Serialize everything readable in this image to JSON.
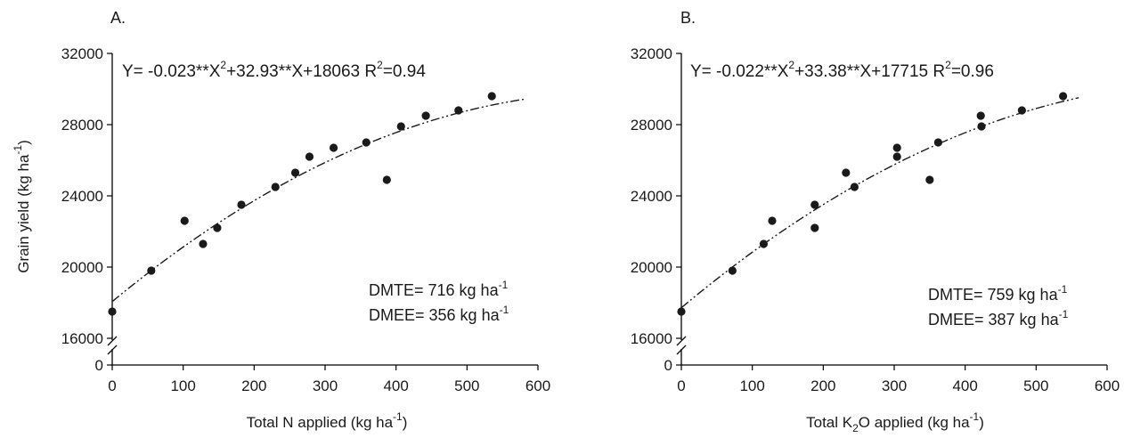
{
  "y_axis_title": "Grain yield (kg ha",
  "y_axis_title_sup": "-1",
  "y_axis_title_end": ")",
  "chart_data": [
    {
      "type": "scatter",
      "panel_label": "A.",
      "xlabel": "Total N applied (kg ha",
      "xlabel_sup": "-1",
      "xlabel_end": ")",
      "ylabel": "Grain yield (kg ha-1)",
      "xlim": [
        0,
        600
      ],
      "x_ticks": [
        "0",
        "100",
        "200",
        "300",
        "400",
        "500",
        "600"
      ],
      "y_ticks": [
        "16000",
        "20000",
        "24000",
        "28000",
        "32000"
      ],
      "y_break_tick": "0",
      "ylim": [
        16000,
        32000
      ],
      "axis_break": true,
      "grid": false,
      "equation": {
        "a": "Y= -0.023**X",
        "a_sup": "2",
        "b": "+32.93**X+18063  R",
        "b_sup": "2",
        "c": "=0.94"
      },
      "annotations": [
        {
          "text": "DMTE= 716 kg ha",
          "sup": "-1"
        },
        {
          "text": "DMEE= 356 kg ha",
          "sup": "-1"
        }
      ],
      "points": [
        {
          "x": 0,
          "y": 17500
        },
        {
          "x": 55,
          "y": 19800
        },
        {
          "x": 102,
          "y": 22600
        },
        {
          "x": 128,
          "y": 21300
        },
        {
          "x": 148,
          "y": 22200
        },
        {
          "x": 182,
          "y": 23500
        },
        {
          "x": 230,
          "y": 24500
        },
        {
          "x": 258,
          "y": 25300
        },
        {
          "x": 278,
          "y": 26200
        },
        {
          "x": 312,
          "y": 26700
        },
        {
          "x": 358,
          "y": 27000
        },
        {
          "x": 387,
          "y": 24900
        },
        {
          "x": 407,
          "y": 27900
        },
        {
          "x": 442,
          "y": 28500
        },
        {
          "x": 488,
          "y": 28800
        },
        {
          "x": 535,
          "y": 29600
        }
      ],
      "fit": {
        "a": -0.023,
        "b": 32.93,
        "c": 18063,
        "x_range": [
          0,
          580
        ]
      }
    },
    {
      "type": "scatter",
      "panel_label": "B.",
      "xlabel": "Total K",
      "xlabel_sub": "2",
      "xlabel_mid": "O applied (kg ha",
      "xlabel_sup": "-1",
      "xlabel_end": ")",
      "ylabel": "Grain yield (kg ha-1)",
      "xlim": [
        0,
        600
      ],
      "x_ticks": [
        "0",
        "100",
        "200",
        "300",
        "400",
        "500",
        "600"
      ],
      "y_ticks": [
        "16000",
        "20000",
        "24000",
        "28000",
        "32000"
      ],
      "y_break_tick": "0",
      "ylim": [
        16000,
        32000
      ],
      "axis_break": true,
      "grid": false,
      "equation": {
        "a": "Y= -0.022**X",
        "a_sup": "2",
        "b": "+33.38**X+17715  R",
        "b_sup": "2",
        "c": "=0.96"
      },
      "annotations": [
        {
          "text": "DMTE= 759 kg ha",
          "sup": "-1"
        },
        {
          "text": "DMEE= 387 kg ha",
          "sup": "-1"
        }
      ],
      "points": [
        {
          "x": 0,
          "y": 17500
        },
        {
          "x": 72,
          "y": 19800
        },
        {
          "x": 116,
          "y": 21300
        },
        {
          "x": 128,
          "y": 22600
        },
        {
          "x": 188,
          "y": 23500
        },
        {
          "x": 188,
          "y": 22200
        },
        {
          "x": 232,
          "y": 25300
        },
        {
          "x": 244,
          "y": 24500
        },
        {
          "x": 304,
          "y": 26700
        },
        {
          "x": 304,
          "y": 26200
        },
        {
          "x": 350,
          "y": 24900
        },
        {
          "x": 362,
          "y": 27000
        },
        {
          "x": 422,
          "y": 28500
        },
        {
          "x": 423,
          "y": 27900
        },
        {
          "x": 480,
          "y": 28800
        },
        {
          "x": 538,
          "y": 29600
        }
      ],
      "fit": {
        "a": -0.022,
        "b": 33.38,
        "c": 17715,
        "x_range": [
          0,
          560
        ]
      }
    }
  ]
}
